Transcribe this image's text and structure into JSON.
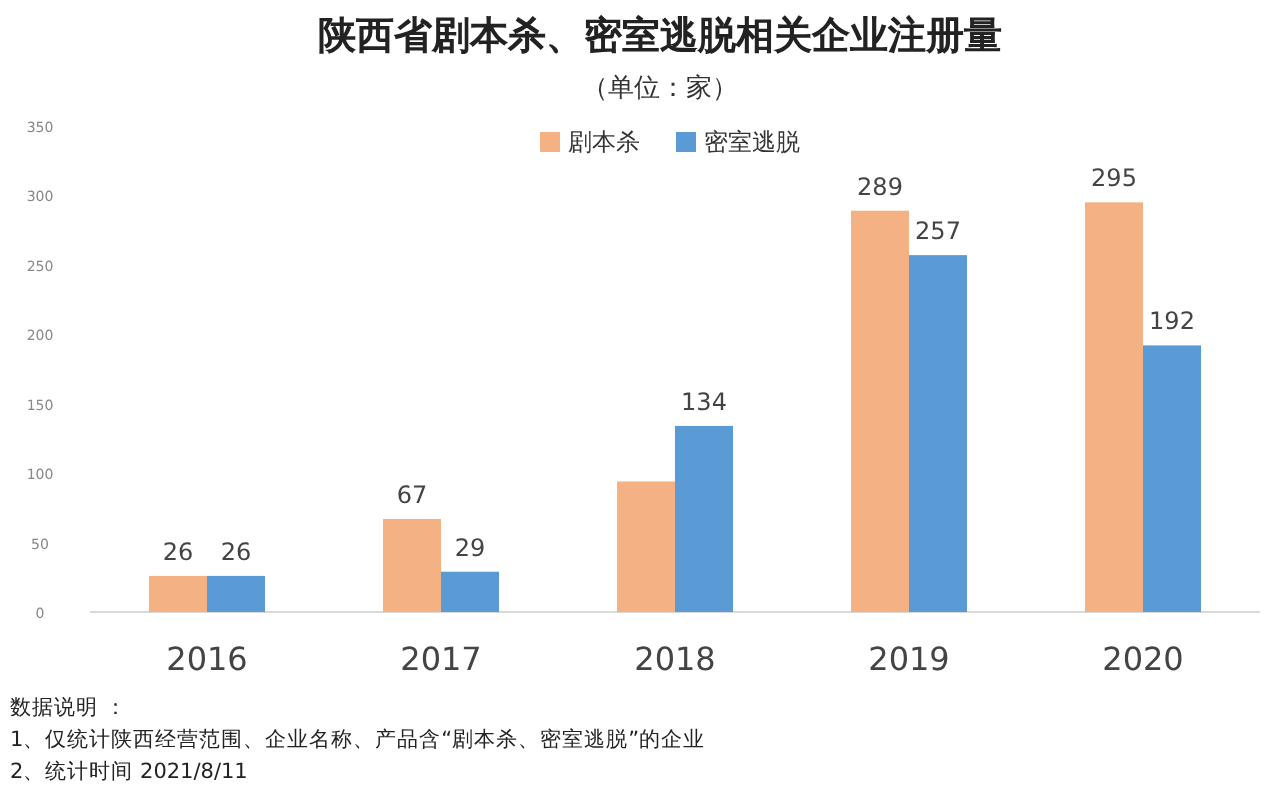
{
  "chart_data": {
    "type": "bar",
    "title": "陕西省剧本杀、密室逃脱相关企业注册量",
    "subtitle": "（单位：家）",
    "categories": [
      "2016",
      "2017",
      "2018",
      "2019",
      "2020"
    ],
    "series": [
      {
        "name": "剧本杀",
        "color": "#f4b183",
        "values": [
          26,
          67,
          94,
          289,
          295
        ],
        "value_labels": [
          "26",
          "67",
          null,
          "289",
          "295"
        ]
      },
      {
        "name": "密室逃脱",
        "color": "#5b9bd5",
        "values": [
          26,
          29,
          134,
          257,
          192
        ],
        "value_labels": [
          "26",
          "29",
          "134",
          "257",
          "192"
        ]
      }
    ],
    "ylim": [
      0,
      350
    ],
    "yticks": [
      0,
      50,
      100,
      150,
      200,
      250,
      300,
      350
    ],
    "grid": false,
    "legend": "top",
    "annotations": [
      "数据说明 ：",
      "1、仅统计陕西经营范围、企业名称、产品含“剧本杀、密室逃脱”的企业",
      "2、统计时间 2021/8/11"
    ]
  }
}
